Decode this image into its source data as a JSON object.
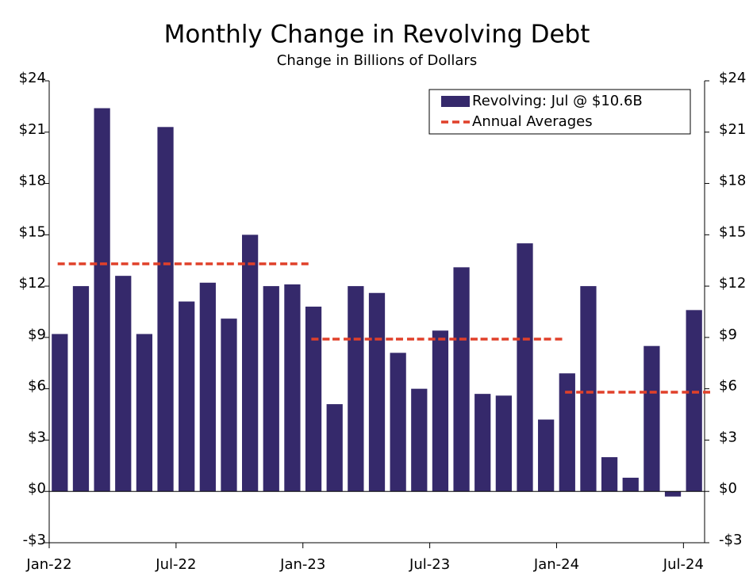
{
  "chart_data": {
    "type": "bar",
    "title": "Monthly Change in Revolving Debt",
    "subtitle": "Change in Billions of Dollars",
    "categories": [
      "Jan-22",
      null,
      null,
      null,
      null,
      null,
      "Jul-22",
      null,
      null,
      null,
      null,
      null,
      "Jan-23",
      null,
      null,
      null,
      null,
      null,
      "Jul-23",
      null,
      null,
      null,
      null,
      null,
      "Jan-24",
      null,
      null,
      null,
      null,
      null,
      "Jul-24"
    ],
    "series": [
      {
        "name": "Revolving: Jul @ $10.6B",
        "type": "bar",
        "color": "#35296b",
        "values": [
          9.2,
          12.0,
          22.4,
          12.6,
          9.2,
          21.3,
          11.1,
          12.2,
          10.1,
          15.0,
          12.0,
          12.1,
          10.8,
          5.1,
          12.0,
          11.6,
          8.1,
          6.0,
          9.4,
          13.1,
          5.7,
          5.6,
          14.5,
          4.2,
          6.9,
          12.0,
          2.0,
          0.8,
          8.5,
          -0.3,
          10.6
        ]
      },
      {
        "name": "Annual Averages",
        "type": "line",
        "dashed": true,
        "color": "#e0402a",
        "values": [
          13.3,
          13.3,
          13.3,
          13.3,
          13.3,
          13.3,
          13.3,
          13.3,
          13.3,
          13.3,
          13.3,
          13.3,
          8.9,
          8.9,
          8.9,
          8.9,
          8.9,
          8.9,
          8.9,
          8.9,
          8.9,
          8.9,
          8.9,
          8.9,
          5.8,
          5.8,
          5.8,
          5.8,
          5.8,
          5.8,
          5.8
        ]
      }
    ],
    "ylim": [
      -3,
      24
    ],
    "yticks": [
      {
        "value": -3,
        "label": "-$3"
      },
      {
        "value": 0,
        "label": "$0"
      },
      {
        "value": 3,
        "label": "$3"
      },
      {
        "value": 6,
        "label": "$6"
      },
      {
        "value": 9,
        "label": "$9"
      },
      {
        "value": 12,
        "label": "$12"
      },
      {
        "value": 15,
        "label": "$15"
      },
      {
        "value": 18,
        "label": "$18"
      },
      {
        "value": 21,
        "label": "$21"
      },
      {
        "value": 24,
        "label": "$24"
      }
    ],
    "y2lim": [
      -3,
      24
    ],
    "y2ticks": [
      {
        "value": -3,
        "label": "-$3"
      },
      {
        "value": 0,
        "label": "$0"
      },
      {
        "value": 3,
        "label": "$3"
      },
      {
        "value": 6,
        "label": "$6"
      },
      {
        "value": 9,
        "label": "$9"
      },
      {
        "value": 12,
        "label": "$12"
      },
      {
        "value": 15,
        "label": "$15"
      },
      {
        "value": 18,
        "label": "$18"
      },
      {
        "value": 21,
        "label": "$21"
      },
      {
        "value": 24,
        "label": "$24"
      }
    ],
    "legend": "upper right",
    "grid": false
  }
}
